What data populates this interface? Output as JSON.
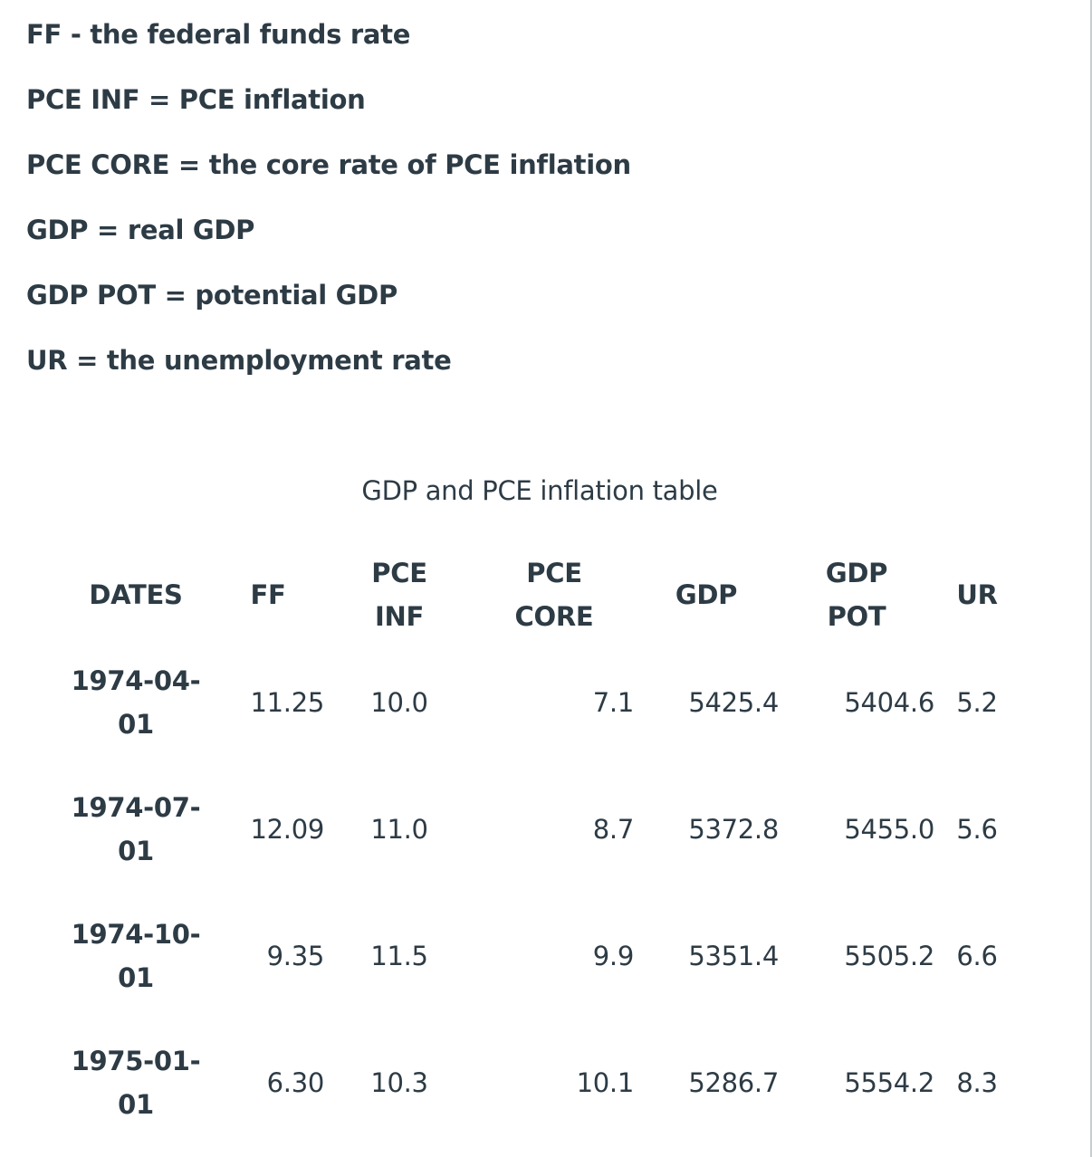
{
  "definitions": [
    "FF - the federal funds rate",
    "PCE INF = PCE inflation",
    "PCE CORE = the core rate of PCE inflation",
    "GDP = real GDP",
    "GDP POT = potential GDP",
    "UR = the unemployment rate"
  ],
  "table": {
    "caption": "GDP and PCE inflation table",
    "headers": {
      "dates": [
        "DATES"
      ],
      "ff": [
        "FF"
      ],
      "pce_inf": [
        "PCE",
        "INF"
      ],
      "pce_core": [
        "PCE",
        "CORE"
      ],
      "gdp": [
        "GDP"
      ],
      "gdp_pot": [
        "GDP",
        "POT"
      ],
      "ur": [
        "UR"
      ]
    },
    "rows": [
      {
        "date": [
          "1974-04-",
          "01"
        ],
        "ff": "11.25",
        "pce_inf": "10.0",
        "pce_core": "7.1",
        "gdp": "5425.4",
        "gdp_pot": "5404.6",
        "ur": "5.2"
      },
      {
        "date": [
          "1974-07-",
          "01"
        ],
        "ff": "12.09",
        "pce_inf": "11.0",
        "pce_core": "8.7",
        "gdp": "5372.8",
        "gdp_pot": "5455.0",
        "ur": "5.6"
      },
      {
        "date": [
          "1974-10-",
          "01"
        ],
        "ff": "9.35",
        "pce_inf": "11.5",
        "pce_core": "9.9",
        "gdp": "5351.4",
        "gdp_pot": "5505.2",
        "ur": "6.6"
      },
      {
        "date": [
          "1975-01-",
          "01"
        ],
        "ff": "6.30",
        "pce_inf": "10.3",
        "pce_core": "10.1",
        "gdp": "5286.7",
        "gdp_pot": "5554.2",
        "ur": "8.3"
      }
    ]
  },
  "colors": {
    "text": "#2d3b45",
    "border": "#c7cdd1",
    "background": "#ffffff"
  }
}
